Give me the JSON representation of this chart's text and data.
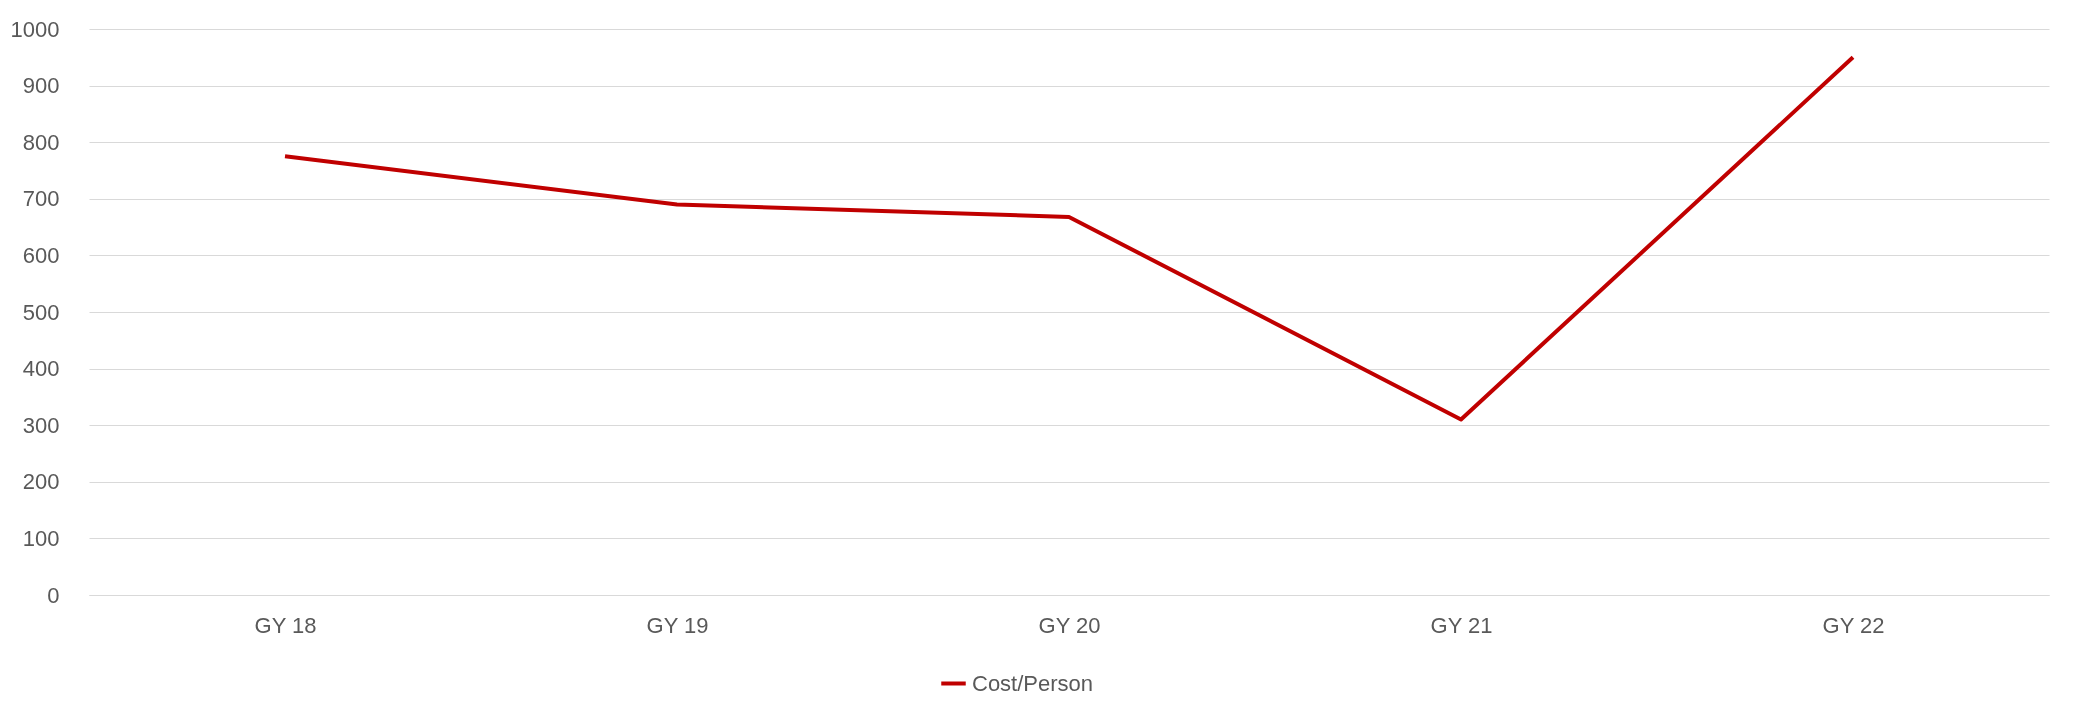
{
  "chart_data": {
    "type": "line",
    "categories": [
      "GY 18",
      "GY 19",
      "GY 20",
      "GY 21",
      "GY 22"
    ],
    "series": [
      {
        "name": "Cost/Person",
        "color": "#c00000",
        "values": [
          775,
          690,
          668,
          310,
          950
        ]
      }
    ],
    "ylim": [
      0,
      1000
    ],
    "yticks": [
      0,
      100,
      200,
      300,
      400,
      500,
      600,
      700,
      800,
      900,
      1000
    ],
    "grid": "y",
    "legend": "bottom",
    "marker": "none",
    "line_style": "solid"
  }
}
